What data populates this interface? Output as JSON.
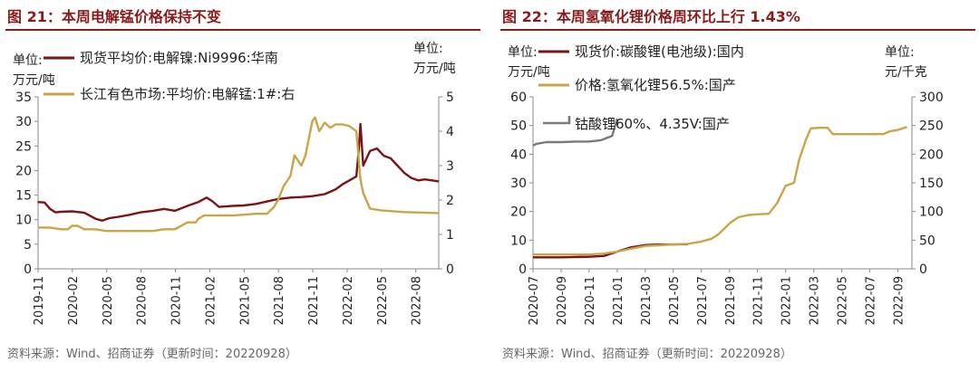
{
  "left": {
    "figure_title": "图 21：本周电解锰价格保持不变",
    "source": "资料来源：Wind、招商证券（更新时间：20220928）"
  },
  "right": {
    "figure_title": "图 22：本周氢氧化锂价格周环比上行 1.43%",
    "source": "资料来源：Wind、招商证券（更新时间：20220928）"
  },
  "chart_data": [
    {
      "type": "line",
      "title": "本周电解锰价格保持不变",
      "ylabel_left": [
        "单位:",
        "万元/吨"
      ],
      "ylabel_right": [
        "单位:",
        "万元/吨"
      ],
      "ylim_left": [
        0,
        35
      ],
      "ylim_right": [
        0,
        5
      ],
      "yticks_left": [
        0,
        5,
        10,
        15,
        20,
        25,
        30,
        35
      ],
      "yticks_right": [
        0,
        1,
        2,
        3,
        4,
        5
      ],
      "x_range": [
        2019.833,
        2022.75
      ],
      "xticks": [
        {
          "label": "2019-11",
          "t": 2019.833
        },
        {
          "label": "2020-02",
          "t": 2020.083
        },
        {
          "label": "2020-05",
          "t": 2020.333
        },
        {
          "label": "2020-08",
          "t": 2020.583
        },
        {
          "label": "2020-11",
          "t": 2020.833
        },
        {
          "label": "2021-02",
          "t": 2021.083
        },
        {
          "label": "2021-05",
          "t": 2021.333
        },
        {
          "label": "2021-08",
          "t": 2021.583
        },
        {
          "label": "2021-11",
          "t": 2021.833
        },
        {
          "label": "2022-02",
          "t": 2022.083
        },
        {
          "label": "2022-05",
          "t": 2022.333
        },
        {
          "label": "2022-08",
          "t": 2022.583
        }
      ],
      "series": [
        {
          "name": "现货平均价:电解镍:Ni9996:华南",
          "axis": "left",
          "color": "#7B1416",
          "points": [
            [
              2019.83,
              13.6
            ],
            [
              2019.88,
              13.5
            ],
            [
              2019.92,
              12.2
            ],
            [
              2019.96,
              11.5
            ],
            [
              2020.0,
              11.6
            ],
            [
              2020.08,
              11.7
            ],
            [
              2020.17,
              11.4
            ],
            [
              2020.25,
              10.2
            ],
            [
              2020.3,
              9.8
            ],
            [
              2020.35,
              10.3
            ],
            [
              2020.42,
              10.6
            ],
            [
              2020.5,
              11.0
            ],
            [
              2020.58,
              11.5
            ],
            [
              2020.67,
              11.8
            ],
            [
              2020.75,
              12.2
            ],
            [
              2020.83,
              11.8
            ],
            [
              2020.92,
              12.8
            ],
            [
              2021.0,
              13.6
            ],
            [
              2021.06,
              14.5
            ],
            [
              2021.1,
              13.8
            ],
            [
              2021.15,
              12.6
            ],
            [
              2021.25,
              12.8
            ],
            [
              2021.33,
              12.9
            ],
            [
              2021.42,
              13.2
            ],
            [
              2021.5,
              13.7
            ],
            [
              2021.58,
              14.2
            ],
            [
              2021.67,
              14.5
            ],
            [
              2021.75,
              14.6
            ],
            [
              2021.83,
              14.8
            ],
            [
              2021.92,
              15.2
            ],
            [
              2022.0,
              16.2
            ],
            [
              2022.05,
              17.2
            ],
            [
              2022.1,
              18.0
            ],
            [
              2022.15,
              18.8
            ],
            [
              2022.17,
              25.0
            ],
            [
              2022.18,
              29.5
            ],
            [
              2022.2,
              21.0
            ],
            [
              2022.25,
              24.0
            ],
            [
              2022.3,
              24.5
            ],
            [
              2022.35,
              23.0
            ],
            [
              2022.4,
              22.5
            ],
            [
              2022.45,
              21.0
            ],
            [
              2022.5,
              19.5
            ],
            [
              2022.55,
              18.5
            ],
            [
              2022.6,
              18.0
            ],
            [
              2022.65,
              18.2
            ],
            [
              2022.7,
              18.0
            ],
            [
              2022.75,
              17.8
            ]
          ]
        },
        {
          "name": "长江有色市场:平均价:电解锰:1#:右",
          "axis": "right",
          "color": "#C9A547",
          "points": [
            [
              2019.83,
              1.2
            ],
            [
              2019.92,
              1.2
            ],
            [
              2020.0,
              1.15
            ],
            [
              2020.05,
              1.15
            ],
            [
              2020.08,
              1.25
            ],
            [
              2020.12,
              1.25
            ],
            [
              2020.17,
              1.15
            ],
            [
              2020.25,
              1.15
            ],
            [
              2020.33,
              1.1
            ],
            [
              2020.5,
              1.1
            ],
            [
              2020.67,
              1.1
            ],
            [
              2020.75,
              1.15
            ],
            [
              2020.83,
              1.15
            ],
            [
              2020.92,
              1.35
            ],
            [
              2020.98,
              1.35
            ],
            [
              2021.0,
              1.45
            ],
            [
              2021.04,
              1.55
            ],
            [
              2021.08,
              1.55
            ],
            [
              2021.25,
              1.55
            ],
            [
              2021.42,
              1.6
            ],
            [
              2021.5,
              1.6
            ],
            [
              2021.55,
              1.8
            ],
            [
              2021.58,
              2.0
            ],
            [
              2021.62,
              2.4
            ],
            [
              2021.67,
              2.7
            ],
            [
              2021.7,
              3.3
            ],
            [
              2021.75,
              3.0
            ],
            [
              2021.78,
              3.3
            ],
            [
              2021.83,
              4.3
            ],
            [
              2021.85,
              4.4
            ],
            [
              2021.88,
              4.0
            ],
            [
              2021.92,
              4.25
            ],
            [
              2021.96,
              4.1
            ],
            [
              2022.0,
              4.2
            ],
            [
              2022.05,
              4.2
            ],
            [
              2022.1,
              4.15
            ],
            [
              2022.15,
              4.0
            ],
            [
              2022.18,
              2.6
            ],
            [
              2022.2,
              2.2
            ],
            [
              2022.25,
              1.75
            ],
            [
              2022.33,
              1.7
            ],
            [
              2022.5,
              1.65
            ],
            [
              2022.75,
              1.62
            ]
          ]
        }
      ]
    },
    {
      "type": "line",
      "title": "本周氢氧化锂价格周环比上行 1.43%",
      "ylabel_left": [
        "单位:",
        "万元/吨"
      ],
      "ylabel_right": [
        "单位:",
        "元/千克"
      ],
      "ylim_left": [
        0,
        60
      ],
      "ylim_right": [
        0,
        300
      ],
      "yticks_left": [
        0,
        10,
        20,
        30,
        40,
        50,
        60
      ],
      "yticks_right": [
        0,
        50,
        100,
        150,
        200,
        250,
        300
      ],
      "x_range": [
        2020.5,
        2022.75
      ],
      "xticks": [
        {
          "label": "2020-07",
          "t": 2020.5
        },
        {
          "label": "2020-09",
          "t": 2020.667
        },
        {
          "label": "2020-11",
          "t": 2020.833
        },
        {
          "label": "2021-01",
          "t": 2021.0
        },
        {
          "label": "2021-03",
          "t": 2021.167
        },
        {
          "label": "2021-05",
          "t": 2021.333
        },
        {
          "label": "2021-07",
          "t": 2021.5
        },
        {
          "label": "2021-09",
          "t": 2021.667
        },
        {
          "label": "2021-11",
          "t": 2021.833
        },
        {
          "label": "2022-01",
          "t": 2022.0
        },
        {
          "label": "2022-03",
          "t": 2022.167
        },
        {
          "label": "2022-05",
          "t": 2022.333
        },
        {
          "label": "2022-07",
          "t": 2022.5
        },
        {
          "label": "2022-09",
          "t": 2022.667
        }
      ],
      "series": [
        {
          "name": "现货价:碳酸锂(电池级):国内",
          "axis": "left",
          "color": "#7B1416",
          "points": [
            [
              2020.5,
              4.0
            ],
            [
              2020.67,
              4.0
            ],
            [
              2020.83,
              4.2
            ],
            [
              2020.92,
              4.5
            ],
            [
              2021.0,
              6.0
            ],
            [
              2021.08,
              7.5
            ],
            [
              2021.17,
              8.3
            ],
            [
              2021.25,
              8.5
            ],
            [
              2021.33,
              8.5
            ],
            [
              2021.42,
              8.6
            ]
          ]
        },
        {
          "name": "价格:氢氧化锂56.5%:国产",
          "axis": "left",
          "color": "#C9A547",
          "points": [
            [
              2020.5,
              5.0
            ],
            [
              2020.67,
              5.0
            ],
            [
              2020.83,
              5.0
            ],
            [
              2020.92,
              5.3
            ],
            [
              2021.0,
              6.0
            ],
            [
              2021.08,
              7.0
            ],
            [
              2021.17,
              8.0
            ],
            [
              2021.25,
              8.2
            ],
            [
              2021.33,
              8.5
            ],
            [
              2021.42,
              8.7
            ],
            [
              2021.5,
              9.5
            ],
            [
              2021.56,
              10.5
            ],
            [
              2021.6,
              12.0
            ],
            [
              2021.67,
              16.0
            ],
            [
              2021.72,
              18.0
            ],
            [
              2021.78,
              18.8
            ],
            [
              2021.83,
              19.0
            ],
            [
              2021.9,
              19.2
            ],
            [
              2021.95,
              23.0
            ],
            [
              2022.0,
              29.0
            ],
            [
              2022.05,
              30.0
            ],
            [
              2022.08,
              38.0
            ],
            [
              2022.12,
              45.0
            ],
            [
              2022.15,
              49.0
            ],
            [
              2022.2,
              49.2
            ],
            [
              2022.25,
              49.2
            ],
            [
              2022.28,
              47.0
            ],
            [
              2022.33,
              47.0
            ],
            [
              2022.5,
              47.0
            ],
            [
              2022.58,
              47.0
            ],
            [
              2022.62,
              48.0
            ],
            [
              2022.67,
              48.5
            ],
            [
              2022.72,
              49.5
            ]
          ]
        },
        {
          "name": "钴酸锂60%、4.35V:国产",
          "axis": "right",
          "color": "#7A7A7A",
          "points": [
            [
              2020.5,
              215
            ],
            [
              2020.52,
              218
            ],
            [
              2020.58,
              221
            ],
            [
              2020.67,
              221
            ],
            [
              2020.75,
              222
            ],
            [
              2020.83,
              222
            ],
            [
              2020.9,
              224
            ],
            [
              2020.97,
              232
            ],
            [
              2021.0,
              262
            ]
          ]
        }
      ]
    }
  ]
}
